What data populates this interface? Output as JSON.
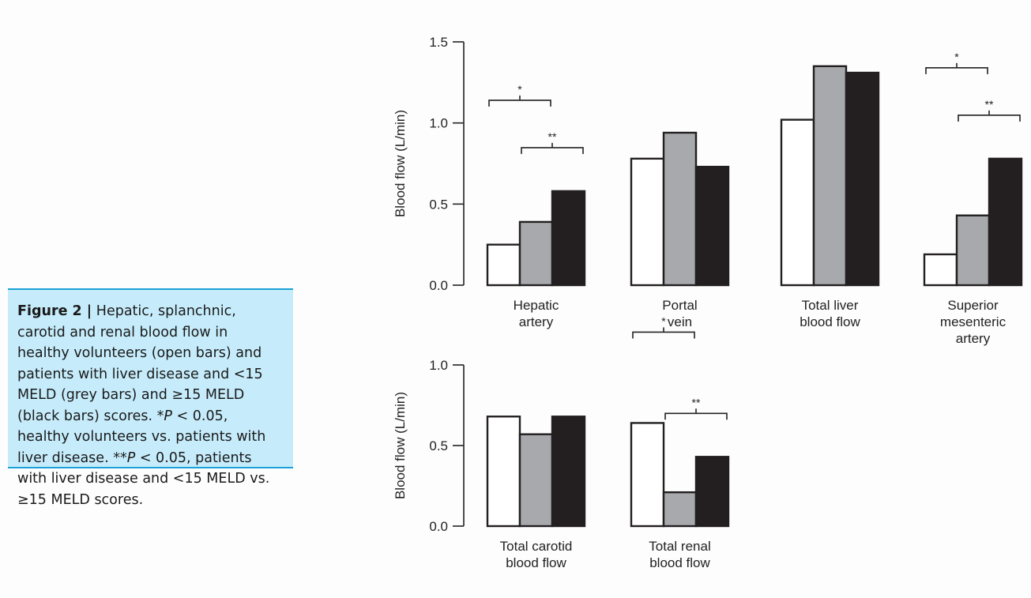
{
  "caption": {
    "label": "Figure 2 |",
    "text": "Hepatic, splanchnic, carotid and renal blood flow in healthy volunteers (open bars) and patients with liver disease and <15 MELD (grey bars) and ≥15 MELD (black bars) scores. *",
    "p1": "P",
    "text2": " < 0.05, healthy volunteers vs. patients with liver disease. **",
    "p2": "P",
    "text3": " < 0.05, patients with liver disease and <15 MELD vs. ≥15 MELD scores."
  },
  "colors": {
    "open": "#ffffff",
    "grey": "#a7a9ac",
    "black": "#231f20",
    "caption_bg": "#c6ecfb",
    "caption_rule": "#1aa2d8"
  },
  "chart_data": [
    {
      "type": "bar",
      "ylabel": "Blood flow (L/min)",
      "ylim": [
        0,
        1.5
      ],
      "yticks": [
        "0.0",
        "0.5",
        "1.0",
        "1.5"
      ],
      "ytick_values": [
        0,
        0.5,
        1.0,
        1.5
      ],
      "categories": [
        [
          "Hepatic",
          "artery"
        ],
        [
          "Portal",
          "vein"
        ],
        [
          "Total liver",
          "blood flow"
        ],
        [
          "Superior",
          "mesenteric",
          "artery"
        ]
      ],
      "series": [
        {
          "values": [
            0.25,
            0.78,
            1.02,
            0.19
          ]
        },
        {
          "values": [
            0.39,
            0.94,
            1.35,
            0.43
          ]
        },
        {
          "values": [
            0.58,
            0.73,
            1.31,
            0.78
          ]
        }
      ],
      "annotations": [
        {
          "category": 0,
          "from": 0,
          "to": 1,
          "text": "*",
          "level": 0
        },
        {
          "category": 0,
          "from": 1,
          "to": 2,
          "text": "**",
          "level": 1
        },
        {
          "category": 2,
          "from": 0,
          "to": 1,
          "text": "*",
          "level": 0
        },
        {
          "category": 3,
          "from": 0,
          "to": 1,
          "text": "*",
          "level": 0
        },
        {
          "category": 3,
          "from": 1,
          "to": 2,
          "text": "**",
          "level": 1
        }
      ]
    },
    {
      "type": "bar",
      "ylabel": "Blood flow (L/min)",
      "ylim": [
        0,
        1.0
      ],
      "yticks": [
        "0.0",
        "0.5",
        "1.0"
      ],
      "ytick_values": [
        0,
        0.5,
        1.0
      ],
      "categories": [
        [
          "Total carotid",
          "blood flow"
        ],
        [
          "Total renal",
          "blood flow"
        ]
      ],
      "series": [
        {
          "values": [
            0.68,
            0.64
          ]
        },
        {
          "values": [
            0.57,
            0.21
          ]
        },
        {
          "values": [
            0.68,
            0.43
          ]
        }
      ],
      "annotations": [
        {
          "category": 1,
          "from": 0,
          "to": 1,
          "text": "*",
          "level": 0
        },
        {
          "category": 1,
          "from": 1,
          "to": 2,
          "text": "**",
          "level": 1
        }
      ]
    }
  ]
}
